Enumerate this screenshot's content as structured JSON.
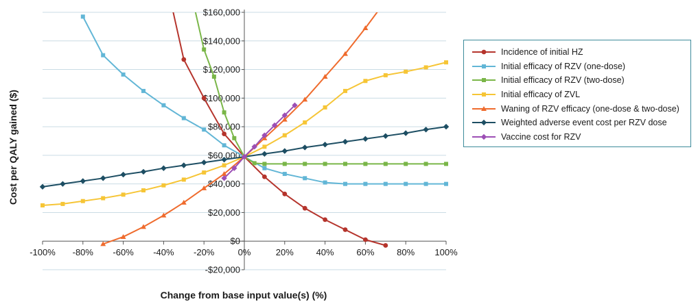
{
  "chart_data": {
    "type": "line",
    "title": "",
    "xlabel": "Change from base input value(s) (%)",
    "ylabel": "Cost per QALY gained ($)",
    "xlim": [
      -100,
      100
    ],
    "ylim": [
      -20000,
      160000
    ],
    "x_ticks": [
      -100,
      -80,
      -60,
      -40,
      -20,
      0,
      20,
      40,
      60,
      80,
      100
    ],
    "x_tick_labels": [
      "-100%",
      "-80%",
      "-60%",
      "-40%",
      "-20%",
      "0%",
      "20%",
      "40%",
      "60%",
      "80%",
      "100%"
    ],
    "y_ticks": [
      -20000,
      0,
      20000,
      40000,
      60000,
      80000,
      100000,
      120000,
      140000,
      160000
    ],
    "y_tick_labels": [
      "-$20,000",
      "$0",
      "$20,000",
      "$40,000",
      "$60,000",
      "$80,000",
      "$100,000",
      "$120,000",
      "$140,000",
      "$160,000"
    ],
    "grid": "horizontal",
    "legend_position": "right",
    "series": [
      {
        "name": "Incidence of initial HZ",
        "color": "#b5342c",
        "marker": "circle",
        "x": [
          -40,
          -30,
          -20,
          -10,
          0,
          10,
          20,
          30,
          40,
          50,
          60,
          70
        ],
        "y": [
          190000,
          127000,
          100000,
          75000,
          59000,
          45000,
          33000,
          23000,
          15000,
          8000,
          1000,
          -3000
        ]
      },
      {
        "name": "Initial efficacy of RZV (one-dose)",
        "color": "#62b6d6",
        "marker": "square",
        "x": [
          -80,
          -70,
          -60,
          -50,
          -40,
          -30,
          -20,
          -10,
          0,
          10,
          20,
          30,
          40,
          50,
          60,
          70,
          80,
          90,
          100
        ],
        "y": [
          157000,
          130000,
          116500,
          105000,
          95000,
          86000,
          78000,
          67000,
          59000,
          51000,
          47000,
          44000,
          41000,
          40000,
          40000,
          40000,
          40000,
          40000,
          40000
        ]
      },
      {
        "name": "Initial efficacy of RZV (two-dose)",
        "color": "#7ab648",
        "marker": "square",
        "x": [
          -25,
          -20,
          -15,
          -10,
          -5,
          0,
          5,
          10,
          20,
          30,
          40,
          50,
          60,
          70,
          80,
          90,
          100
        ],
        "y": [
          165000,
          134000,
          115000,
          90000,
          72000,
          59000,
          54500,
          54000,
          54000,
          54000,
          54000,
          54000,
          54000,
          54000,
          54000,
          54000,
          54000
        ]
      },
      {
        "name": "Initial efficacy of ZVL",
        "color": "#f6c536",
        "marker": "square",
        "x": [
          -100,
          -90,
          -80,
          -70,
          -60,
          -50,
          -40,
          -30,
          -20,
          -10,
          0,
          10,
          20,
          30,
          40,
          50,
          60,
          70,
          80,
          90,
          100
        ],
        "y": [
          25000,
          26000,
          28000,
          30000,
          32500,
          35500,
          39000,
          43000,
          48000,
          53000,
          59000,
          66000,
          74000,
          83000,
          93500,
          105000,
          112000,
          116000,
          118500,
          121500,
          125000
        ]
      },
      {
        "name": "Waning of RZV efficacy (one-dose & two-dose)",
        "color": "#ef6b2d",
        "marker": "triangle",
        "x": [
          -70,
          -60,
          -50,
          -40,
          -30,
          -20,
          -10,
          0,
          10,
          20,
          30,
          40,
          50,
          60,
          70
        ],
        "y": [
          -2000,
          3000,
          10000,
          18000,
          27000,
          37000,
          47000,
          59000,
          72000,
          85000,
          99000,
          115000,
          131000,
          149000,
          168000
        ]
      },
      {
        "name": "Weighted adverse event cost per RZV dose",
        "color": "#1d4e63",
        "marker": "diamond",
        "x": [
          -100,
          -90,
          -80,
          -70,
          -60,
          -50,
          -40,
          -30,
          -20,
          -10,
          0,
          10,
          20,
          30,
          40,
          50,
          60,
          70,
          80,
          90,
          100
        ],
        "y": [
          38000,
          40000,
          42000,
          44000,
          46500,
          48500,
          51000,
          53000,
          55000,
          57000,
          59000,
          61000,
          63000,
          65500,
          67500,
          69500,
          71500,
          73500,
          75500,
          78000,
          80000
        ]
      },
      {
        "name": "Vaccine cost for RZV",
        "color": "#9c4fb5",
        "marker": "diamond",
        "x": [
          -10,
          -5,
          0,
          5,
          10,
          15,
          20,
          25
        ],
        "y": [
          44000,
          51000,
          59000,
          66000,
          74000,
          81000,
          88000,
          95000
        ]
      }
    ]
  }
}
